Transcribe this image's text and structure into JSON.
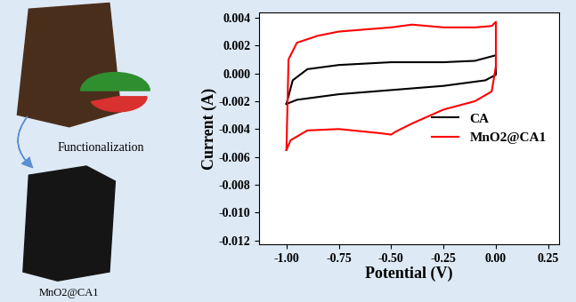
{
  "chart_data": {
    "type": "line",
    "x_label": "Potential (V)",
    "y_label": "Current (A)",
    "xlim": [
      -1.13,
      0.3
    ],
    "xticks": [
      {
        "value": -1.0,
        "label": "-1.00"
      },
      {
        "value": -0.75,
        "label": "-0.75"
      },
      {
        "value": -0.5,
        "label": "-0.50"
      },
      {
        "value": -0.25,
        "label": "-0.25"
      },
      {
        "value": 0.0,
        "label": "0.00"
      },
      {
        "value": 0.25,
        "label": "0.25"
      }
    ],
    "ylim": [
      -0.0123,
      0.0044
    ],
    "yticks": [
      {
        "value": 0.004,
        "label": "0.004"
      },
      {
        "value": 0.002,
        "label": "0.002"
      },
      {
        "value": 0.0,
        "label": "0.000"
      },
      {
        "value": -0.002,
        "label": "-0.002"
      },
      {
        "value": -0.004,
        "label": "-0.004"
      },
      {
        "value": -0.006,
        "label": "-0.006"
      },
      {
        "value": -0.008,
        "label": "-0.008"
      },
      {
        "value": -0.01,
        "label": "-0.010"
      },
      {
        "value": -0.012,
        "label": "-0.012"
      }
    ],
    "grid": false,
    "legend": "center right",
    "series": [
      {
        "name": "CA",
        "color": "#000000",
        "x": [
          -1.0,
          -0.97,
          -0.9,
          -0.75,
          -0.5,
          -0.25,
          -0.1,
          0.0,
          0.0,
          -0.05,
          -0.25,
          -0.5,
          -0.75,
          -0.95,
          -1.0
        ],
        "values": [
          -0.0022,
          -0.0005,
          0.0003,
          0.0006,
          0.0008,
          0.0008,
          0.0009,
          0.0013,
          -0.0001,
          -0.0005,
          -0.0009,
          -0.0012,
          -0.0015,
          -0.0019,
          -0.0022
        ]
      },
      {
        "name": "MnO2@CA1",
        "color": "#ff0000",
        "x": [
          -1.0,
          -0.99,
          -0.95,
          -0.85,
          -0.75,
          -0.5,
          -0.4,
          -0.25,
          -0.1,
          -0.02,
          0.0,
          0.0,
          -0.02,
          -0.1,
          -0.25,
          -0.4,
          -0.48,
          -0.5,
          -0.55,
          -0.75,
          -0.9,
          -0.98,
          -1.0
        ],
        "values": [
          -0.0055,
          0.001,
          0.0022,
          0.0027,
          0.003,
          0.0033,
          0.0035,
          0.0033,
          0.0033,
          0.0034,
          0.0037,
          0.0005,
          -0.0013,
          -0.002,
          -0.0026,
          -0.0036,
          -0.0042,
          -0.0044,
          -0.0043,
          -0.004,
          -0.0041,
          -0.0048,
          -0.0055
        ]
      }
    ],
    "annotations": [
      "Functionalization",
      "MnO2@CA1"
    ]
  }
}
